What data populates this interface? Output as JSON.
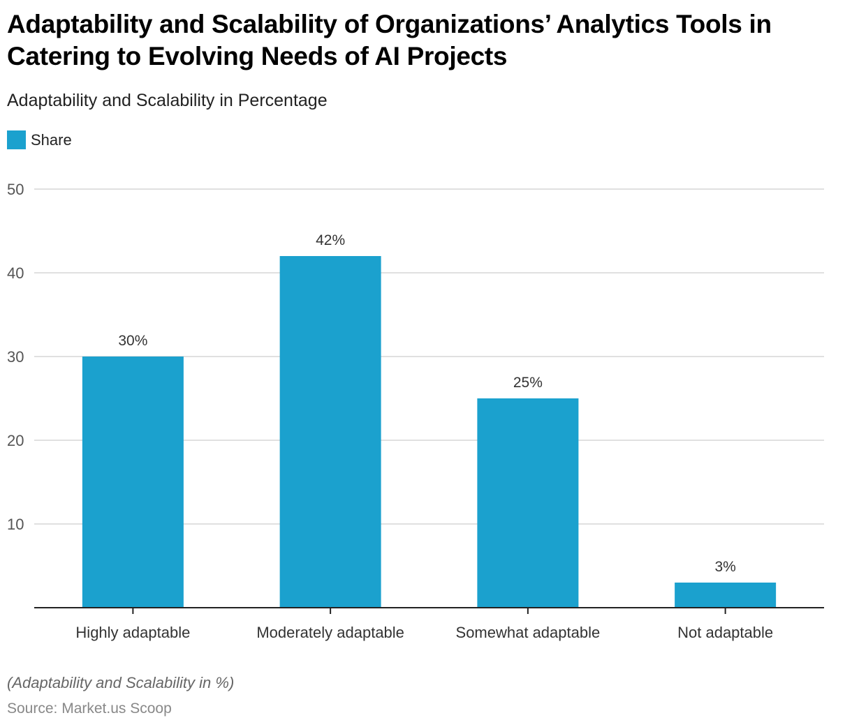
{
  "title": "Adaptability and Scalability of Organizations’ Analytics Tools in Catering to Evolving Needs of AI Projects",
  "subtitle": "Adaptability and Scalability in Percentage",
  "legend": {
    "label": "Share",
    "color": "#1ba1ce"
  },
  "footer": {
    "note": "(Adaptability and Scalability in %)",
    "source": "Source: Market.us Scoop"
  },
  "chart_data": {
    "type": "bar",
    "title": "Adaptability and Scalability of Organizations’ Analytics Tools in Catering to Evolving Needs of AI Projects",
    "subtitle": "Adaptability and Scalability in Percentage",
    "xlabel": "",
    "ylabel": "",
    "categories": [
      "Highly adaptable",
      "Moderately adaptable",
      "Somewhat adaptable",
      "Not adaptable"
    ],
    "series": [
      {
        "name": "Share",
        "values": [
          30,
          42,
          25,
          3
        ],
        "labels": [
          "30%",
          "42%",
          "25%",
          "3%"
        ],
        "color": "#1ba1ce"
      }
    ],
    "ylim": [
      0,
      50
    ],
    "yticks": [
      10,
      20,
      30,
      40,
      50
    ],
    "grid": true,
    "legend": "top-left"
  }
}
